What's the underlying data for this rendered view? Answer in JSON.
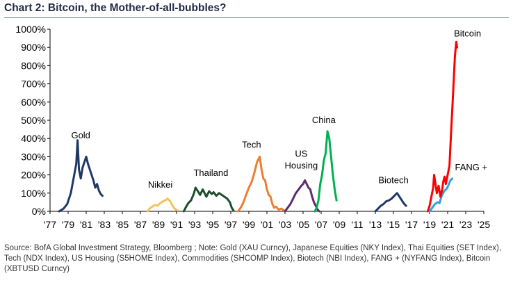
{
  "title": "Chart 2: Bitcoin, the Mother-of-all-bubbles?",
  "source": "Source: BofA Global Investment Strategy, Bloomberg ; Note: Gold (XAU Curncy), Japanese Equities (NKY Index), Thai Equities (SET Index), Tech (NDX Index), US Housing (S5HOME Index), Commodities (SHCOMP Index), Biotech (NBI Index), FANG + (NYFANG Index), Bitcoin (XBTUSD Curncy)",
  "chart_data": {
    "type": "line",
    "title": "Chart 2: Bitcoin, the Mother-of-all-bubbles?",
    "xlabel": "",
    "ylabel": "",
    "xlim": [
      1977,
      2025
    ],
    "ylim": [
      0,
      1000
    ],
    "x_ticks": [
      "'77",
      "'79",
      "'81",
      "'83",
      "'85",
      "'87",
      "'89",
      "'91",
      "'93",
      "'95",
      "'97",
      "'99",
      "'01",
      "'03",
      "'05",
      "'07",
      "'09",
      "'11",
      "'13",
      "'15",
      "'17",
      "'19",
      "'21",
      "'23",
      "'25"
    ],
    "y_ticks": [
      "0%",
      "100%",
      "200%",
      "300%",
      "400%",
      "500%",
      "600%",
      "700%",
      "800%",
      "900%",
      "1000%"
    ],
    "grid": false,
    "series": [
      {
        "name": "Gold",
        "color": "#1f3864",
        "points": [
          [
            1978.0,
            0
          ],
          [
            1978.5,
            15
          ],
          [
            1978.9,
            40
          ],
          [
            1979.3,
            100
          ],
          [
            1979.6,
            180
          ],
          [
            1979.9,
            260
          ],
          [
            1980.05,
            390
          ],
          [
            1980.2,
            230
          ],
          [
            1980.4,
            180
          ],
          [
            1980.6,
            240
          ],
          [
            1980.8,
            270
          ],
          [
            1981.0,
            300
          ],
          [
            1981.2,
            260
          ],
          [
            1981.4,
            230
          ],
          [
            1981.6,
            200
          ],
          [
            1981.8,
            170
          ],
          [
            1982.0,
            130
          ],
          [
            1982.2,
            150
          ],
          [
            1982.4,
            115
          ],
          [
            1982.6,
            95
          ],
          [
            1982.8,
            85
          ]
        ]
      },
      {
        "name": "Nikkei",
        "color": "#f0c35e",
        "points": [
          [
            1987.8,
            0
          ],
          [
            1988.0,
            15
          ],
          [
            1988.3,
            25
          ],
          [
            1988.6,
            35
          ],
          [
            1988.9,
            30
          ],
          [
            1989.2,
            45
          ],
          [
            1989.5,
            55
          ],
          [
            1989.8,
            62
          ],
          [
            1990.0,
            70
          ],
          [
            1990.3,
            55
          ],
          [
            1990.5,
            35
          ],
          [
            1990.7,
            20
          ],
          [
            1990.9,
            10
          ],
          [
            1991.1,
            5
          ]
        ]
      },
      {
        "name": "Thailand",
        "color": "#1e4d2b",
        "points": [
          [
            1991.8,
            0
          ],
          [
            1992.0,
            20
          ],
          [
            1992.3,
            45
          ],
          [
            1992.6,
            60
          ],
          [
            1992.9,
            95
          ],
          [
            1993.1,
            130
          ],
          [
            1993.3,
            115
          ],
          [
            1993.6,
            90
          ],
          [
            1993.9,
            120
          ],
          [
            1994.1,
            100
          ],
          [
            1994.3,
            80
          ],
          [
            1994.6,
            110
          ],
          [
            1994.9,
            95
          ],
          [
            1995.1,
            105
          ],
          [
            1995.4,
            85
          ],
          [
            1995.7,
            100
          ],
          [
            1996.0,
            90
          ],
          [
            1996.3,
            80
          ],
          [
            1996.6,
            70
          ],
          [
            1996.9,
            50
          ],
          [
            1997.1,
            20
          ],
          [
            1997.3,
            5
          ]
        ]
      },
      {
        "name": "Tech",
        "color": "#ed7d31",
        "points": [
          [
            1997.8,
            0
          ],
          [
            1998.1,
            20
          ],
          [
            1998.4,
            50
          ],
          [
            1998.7,
            90
          ],
          [
            1999.0,
            130
          ],
          [
            1999.3,
            160
          ],
          [
            1999.6,
            210
          ],
          [
            1999.9,
            270
          ],
          [
            2000.2,
            300
          ],
          [
            2000.4,
            230
          ],
          [
            2000.6,
            180
          ],
          [
            2000.8,
            170
          ],
          [
            2001.0,
            120
          ],
          [
            2001.2,
            90
          ],
          [
            2001.4,
            80
          ],
          [
            2001.6,
            40
          ],
          [
            2001.8,
            20
          ],
          [
            2002.0,
            25
          ],
          [
            2002.3,
            10
          ],
          [
            2002.6,
            15
          ],
          [
            2002.9,
            5
          ]
        ]
      },
      {
        "name": "US Housing",
        "color": "#5b2c6f",
        "points": [
          [
            2003.0,
            0
          ],
          [
            2003.3,
            20
          ],
          [
            2003.6,
            40
          ],
          [
            2003.9,
            70
          ],
          [
            2004.2,
            100
          ],
          [
            2004.5,
            120
          ],
          [
            2004.8,
            140
          ],
          [
            2005.0,
            150
          ],
          [
            2005.2,
            170
          ],
          [
            2005.4,
            150
          ],
          [
            2005.6,
            130
          ],
          [
            2005.8,
            120
          ],
          [
            2006.0,
            80
          ],
          [
            2006.2,
            50
          ],
          [
            2006.4,
            30
          ],
          [
            2006.6,
            10
          ],
          [
            2006.8,
            0
          ]
        ]
      },
      {
        "name": "China",
        "color": "#00b050",
        "points": [
          [
            2006.3,
            0
          ],
          [
            2006.5,
            20
          ],
          [
            2006.7,
            60
          ],
          [
            2006.9,
            150
          ],
          [
            2007.1,
            200
          ],
          [
            2007.3,
            280
          ],
          [
            2007.5,
            320
          ],
          [
            2007.7,
            440
          ],
          [
            2007.9,
            400
          ],
          [
            2008.1,
            300
          ],
          [
            2008.3,
            200
          ],
          [
            2008.5,
            120
          ],
          [
            2008.7,
            60
          ]
        ]
      },
      {
        "name": "Biotech",
        "color": "#1f3864",
        "points": [
          [
            2013.0,
            0
          ],
          [
            2013.3,
            15
          ],
          [
            2013.6,
            30
          ],
          [
            2013.9,
            40
          ],
          [
            2014.2,
            55
          ],
          [
            2014.5,
            60
          ],
          [
            2014.8,
            70
          ],
          [
            2015.1,
            85
          ],
          [
            2015.4,
            100
          ],
          [
            2015.6,
            85
          ],
          [
            2015.8,
            70
          ],
          [
            2016.0,
            55
          ],
          [
            2016.2,
            40
          ],
          [
            2016.4,
            30
          ]
        ]
      },
      {
        "name": "FANG +",
        "color": "#2ea0e6",
        "points": [
          [
            2019.0,
            0
          ],
          [
            2019.3,
            20
          ],
          [
            2019.6,
            40
          ],
          [
            2019.9,
            50
          ],
          [
            2020.1,
            45
          ],
          [
            2020.3,
            80
          ],
          [
            2020.6,
            110
          ],
          [
            2020.9,
            125
          ],
          [
            2021.1,
            145
          ],
          [
            2021.3,
            170
          ],
          [
            2021.5,
            180
          ]
        ]
      },
      {
        "name": "Bitcoin",
        "color": "#ff0000",
        "points": [
          [
            2018.8,
            0
          ],
          [
            2019.0,
            30
          ],
          [
            2019.2,
            80
          ],
          [
            2019.4,
            130
          ],
          [
            2019.5,
            200
          ],
          [
            2019.65,
            150
          ],
          [
            2019.8,
            100
          ],
          [
            2020.0,
            140
          ],
          [
            2020.2,
            80
          ],
          [
            2020.4,
            120
          ],
          [
            2020.5,
            160
          ],
          [
            2020.65,
            190
          ],
          [
            2020.8,
            150
          ],
          [
            2021.0,
            200
          ],
          [
            2021.2,
            250
          ],
          [
            2021.35,
            400
          ],
          [
            2021.5,
            550
          ],
          [
            2021.65,
            700
          ],
          [
            2021.8,
            850
          ],
          [
            2021.95,
            930
          ],
          [
            2022.05,
            900
          ]
        ]
      }
    ],
    "labels": [
      {
        "series": "Gold",
        "text": "Gold",
        "at": [
          1980.4,
          400
        ]
      },
      {
        "series": "Nikkei",
        "text": "Nikkei",
        "at": [
          1989.2,
          130
        ]
      },
      {
        "series": "Thailand",
        "text": "Thailand",
        "at": [
          1994.8,
          195
        ]
      },
      {
        "series": "Tech",
        "text": "Tech",
        "at": [
          1999.3,
          350
        ]
      },
      {
        "series": "US Housing",
        "text": "US",
        "at": [
          2004.8,
          300
        ]
      },
      {
        "series": "US Housing",
        "text": "Housing",
        "at": [
          2004.8,
          235
        ]
      },
      {
        "series": "China",
        "text": "China",
        "at": [
          2007.3,
          485
        ]
      },
      {
        "series": "Biotech",
        "text": "Biotech",
        "at": [
          2015.0,
          155
        ]
      },
      {
        "series": "FANG +",
        "text": "FANG +",
        "at": [
          2023.6,
          225
        ]
      },
      {
        "series": "Bitcoin",
        "text": "Bitcoin",
        "at": [
          2023.2,
          960
        ]
      }
    ]
  }
}
